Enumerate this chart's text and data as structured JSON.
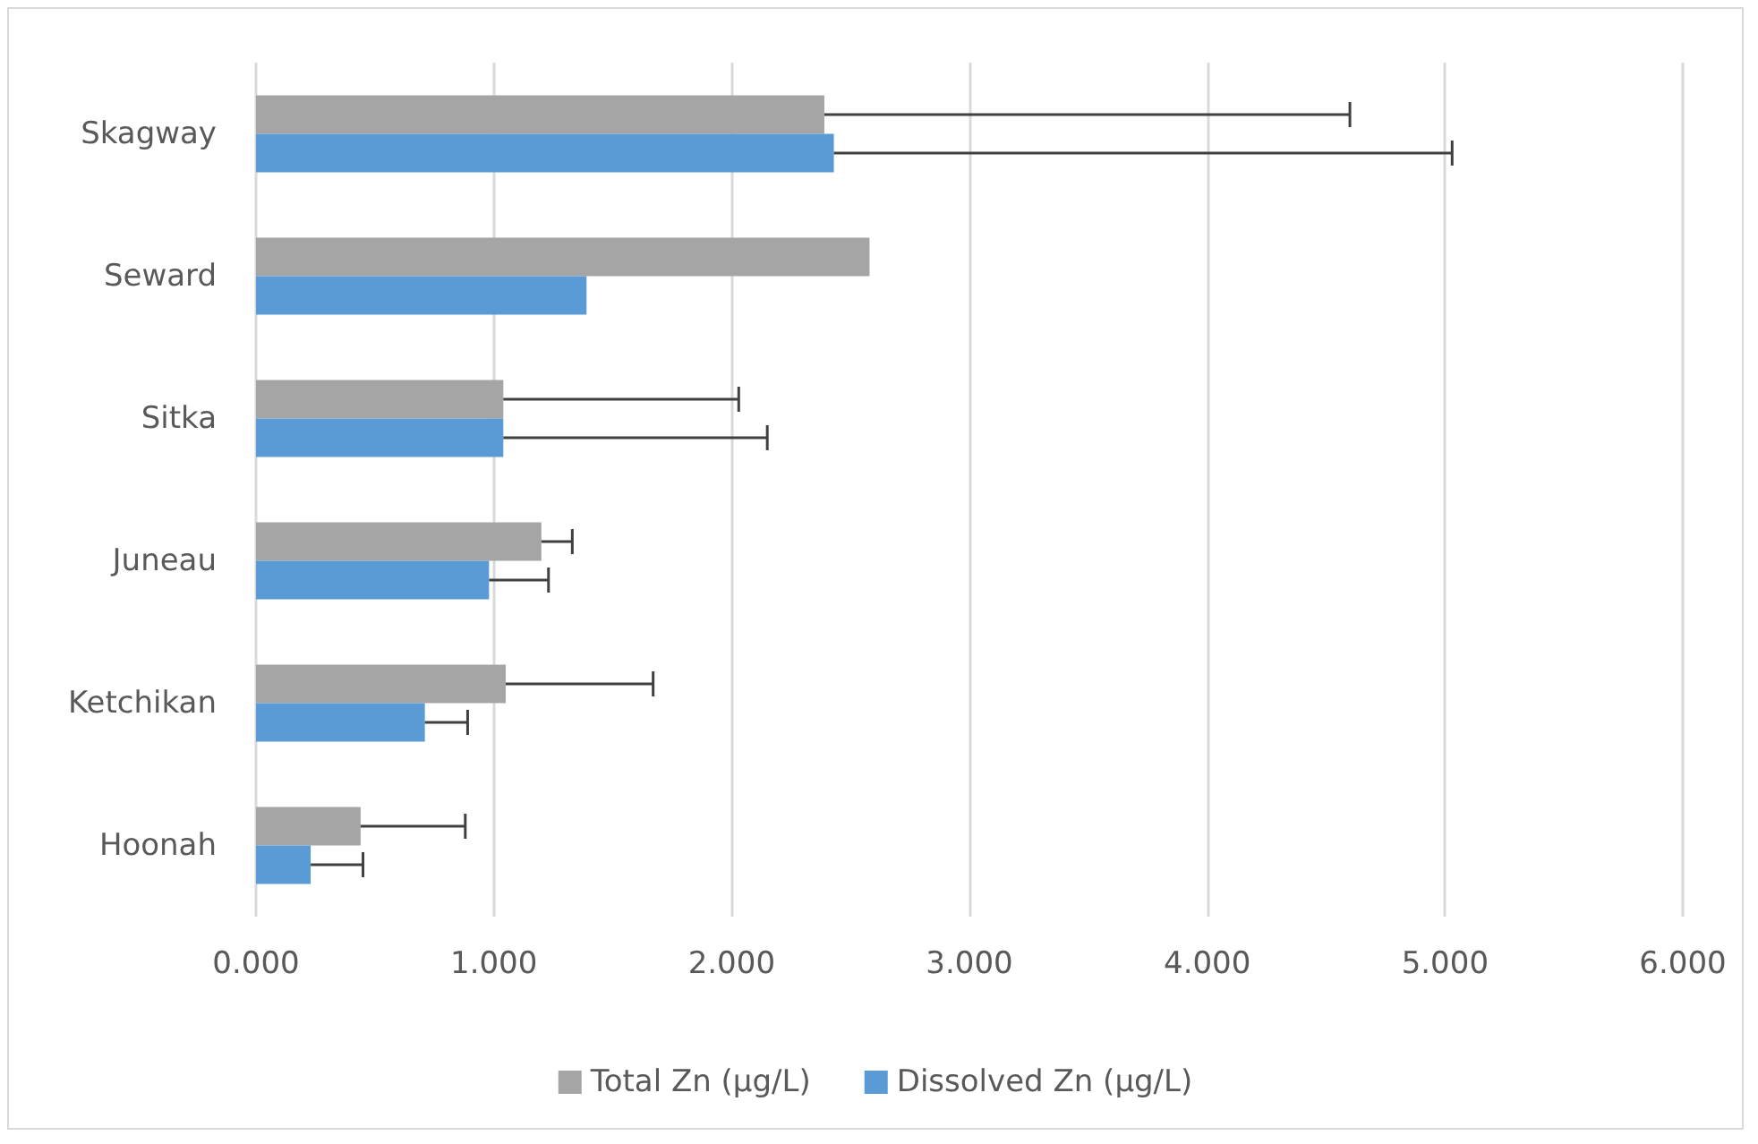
{
  "chart_data": {
    "type": "bar",
    "orientation": "horizontal",
    "categories": [
      "Skagway",
      "Seward",
      "Sitka",
      "Juneau",
      "Ketchikan",
      "Hoonah"
    ],
    "series": [
      {
        "name": "Total Zn (µg/L)",
        "color": "#a5a5a5",
        "values": [
          2.39,
          2.58,
          1.04,
          1.2,
          1.05,
          0.44
        ],
        "errors": [
          [
            2.39,
            4.6
          ],
          null,
          [
            1.04,
            2.03
          ],
          [
            1.2,
            1.33
          ],
          [
            1.05,
            1.67
          ],
          [
            0.44,
            0.88
          ]
        ]
      },
      {
        "name": "Dissolved Zn (µg/L)",
        "color": "#5b9bd5",
        "values": [
          2.43,
          1.39,
          1.04,
          0.98,
          0.71,
          0.23
        ],
        "errors": [
          [
            2.43,
            5.03
          ],
          null,
          [
            1.04,
            2.15
          ],
          [
            0.98,
            1.23
          ],
          [
            0.71,
            0.89
          ],
          [
            0.23,
            0.45
          ]
        ]
      }
    ],
    "xlim": [
      0,
      6
    ],
    "xticks": [
      {
        "value": 0,
        "label": "0.000"
      },
      {
        "value": 1,
        "label": "1.000"
      },
      {
        "value": 2,
        "label": "2.000"
      },
      {
        "value": 3,
        "label": "3.000"
      },
      {
        "value": 4,
        "label": "4.000"
      },
      {
        "value": 5,
        "label": "5.000"
      },
      {
        "value": 6,
        "label": "6.000"
      }
    ],
    "grid": "x",
    "legend": "bottom"
  }
}
